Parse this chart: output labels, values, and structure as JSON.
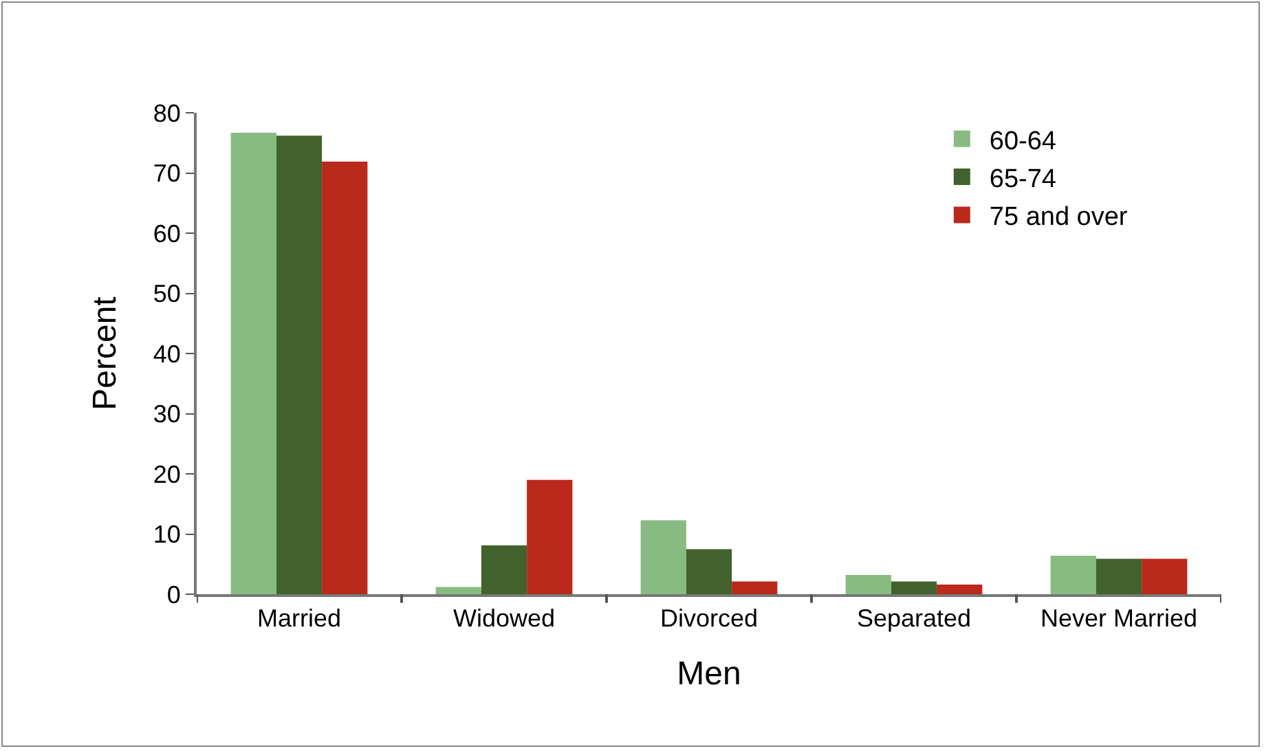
{
  "chart_data": {
    "type": "bar",
    "xlabel": "Men",
    "ylabel": "Percent",
    "categories": [
      "Married",
      "Widowed",
      "Divorced",
      "Separated",
      "Never Married"
    ],
    "series": [
      {
        "name": "60-64",
        "color": "#88bb82",
        "values": [
          76.7,
          1.2,
          12.3,
          3.2,
          6.4
        ]
      },
      {
        "name": "65-74",
        "color": "#41622c",
        "values": [
          76.2,
          8.1,
          7.5,
          2.1,
          5.9
        ]
      },
      {
        "name": "75 and over",
        "color": "#bb281c",
        "values": [
          71.9,
          19.0,
          2.1,
          1.6,
          5.9
        ]
      }
    ],
    "ylim": [
      0,
      80
    ],
    "yticks": [
      0,
      10,
      20,
      30,
      40,
      50,
      60,
      70,
      80
    ],
    "grid": false,
    "legend": "top right"
  }
}
